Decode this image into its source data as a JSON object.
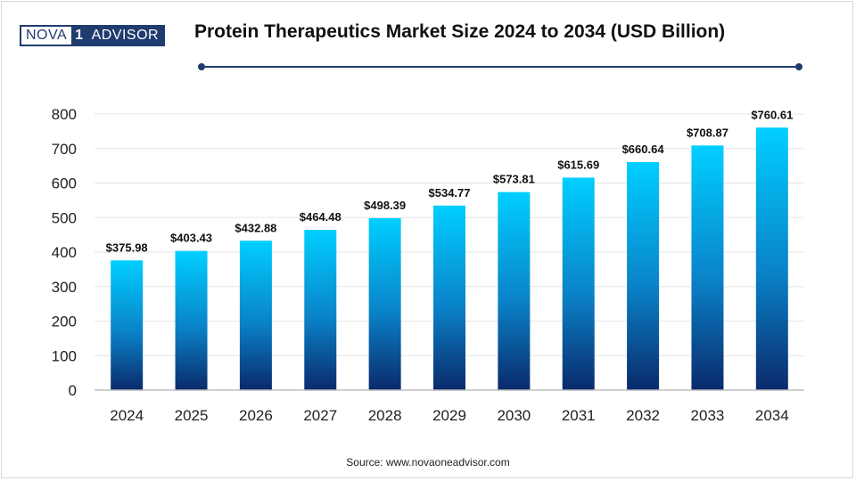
{
  "header": {
    "logo_parts": [
      "NOVA",
      "1",
      "ADVISOR"
    ],
    "title": "Protein Therapeutics Market Size 2024 to 2034 (USD Billion)"
  },
  "footer": {
    "source": "Source: www.novaoneadvisor.com"
  },
  "colors": {
    "bar_top": "#00cfff",
    "bar_bottom": "#0a2a6b",
    "accent": "#1f3c6e"
  },
  "chart_data": {
    "type": "bar",
    "title": "Protein Therapeutics Market Size 2024 to 2034 (USD Billion)",
    "xlabel": "",
    "ylabel": "",
    "categories": [
      "2024",
      "2025",
      "2026",
      "2027",
      "2028",
      "2029",
      "2030",
      "2031",
      "2032",
      "2033",
      "2034"
    ],
    "values": [
      375.98,
      403.43,
      432.88,
      464.48,
      498.39,
      534.77,
      573.81,
      615.69,
      660.64,
      708.87,
      760.61
    ],
    "data_labels": [
      "$375.98",
      "$403.43",
      "$432.88",
      "$464.48",
      "$498.39",
      "$534.77",
      "$573.81",
      "$615.69",
      "$660.64",
      "$708.87",
      "$760.61"
    ],
    "ylim": [
      0,
      800
    ],
    "yticks": [
      "0",
      "100",
      "200",
      "300",
      "400",
      "500",
      "600",
      "700",
      "800"
    ],
    "grid": true,
    "legend": "none"
  }
}
